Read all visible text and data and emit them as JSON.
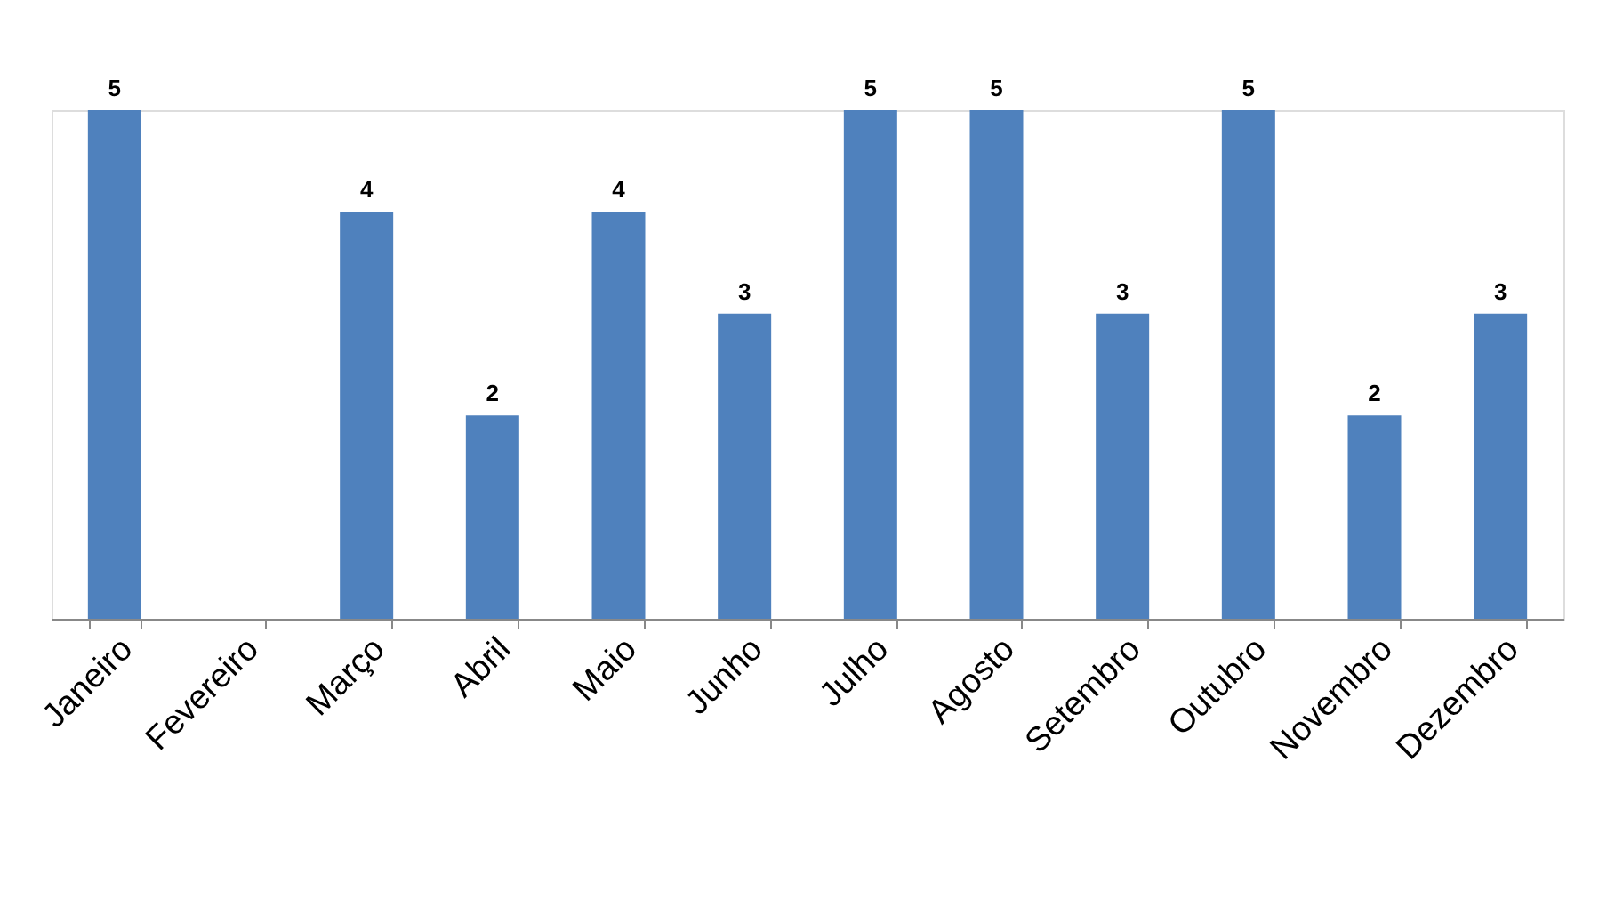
{
  "chart_data": {
    "type": "bar",
    "categories": [
      "Janeiro",
      "Fevereiro",
      "Março",
      "Abril",
      "Maio",
      "Junho",
      "Julho",
      "Agosto",
      "Setembro",
      "Outubro",
      "Novembro",
      "Dezembro"
    ],
    "series": [
      {
        "color": "#4f81bd",
        "values": [
          5,
          null,
          4,
          2,
          4,
          3,
          5,
          5,
          3,
          5,
          2,
          3
        ]
      }
    ],
    "data_labels": true,
    "grid": false,
    "legend": false
  }
}
